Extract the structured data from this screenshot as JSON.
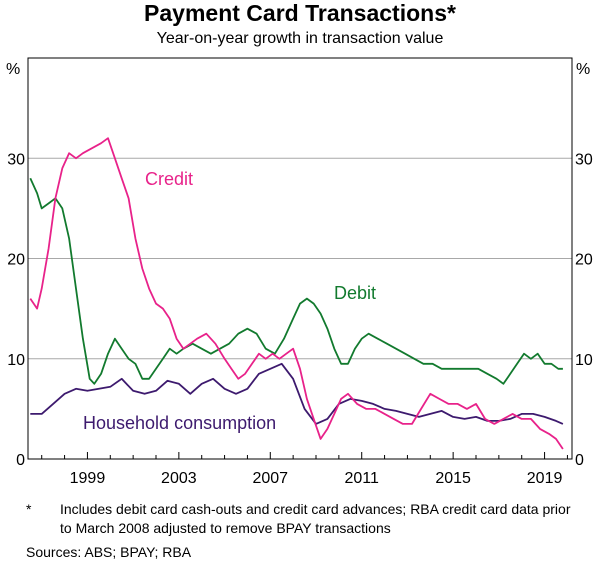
{
  "title": "Payment Card Transactions*",
  "subtitle": "Year-on-year growth in transaction value",
  "footnote": {
    "marker": "*",
    "text": "Includes debit card cash-outs and credit card advances; RBA credit card data prior to March 2008 adjusted to remove BPAY transactions"
  },
  "sources": "Sources: ABS; BPAY; RBA",
  "colors": {
    "credit": "#e8228a",
    "debit": "#127a2e",
    "household": "#3d1a6e",
    "grid": "#a8a8a8"
  },
  "chart_data": {
    "type": "line",
    "yunit": "%",
    "ylim": [
      0,
      40
    ],
    "yticks": [
      0,
      10,
      20,
      30
    ],
    "xlim": [
      1996.4,
      2020.2
    ],
    "xticks": [
      1999,
      2003,
      2007,
      2011,
      2015,
      2019
    ],
    "grid": true,
    "series": [
      {
        "name": "Credit",
        "key": "credit",
        "points": [
          [
            1996.5,
            16
          ],
          [
            1996.8,
            15
          ],
          [
            1997.0,
            17
          ],
          [
            1997.3,
            21
          ],
          [
            1997.6,
            26
          ],
          [
            1997.9,
            29
          ],
          [
            1998.2,
            30.5
          ],
          [
            1998.5,
            30
          ],
          [
            1998.8,
            30.5
          ],
          [
            1999.2,
            31
          ],
          [
            1999.6,
            31.5
          ],
          [
            1999.9,
            32
          ],
          [
            2000.2,
            30
          ],
          [
            2000.5,
            28
          ],
          [
            2000.8,
            26
          ],
          [
            2001.1,
            22
          ],
          [
            2001.4,
            19
          ],
          [
            2001.7,
            17
          ],
          [
            2002.0,
            15.5
          ],
          [
            2002.3,
            15
          ],
          [
            2002.6,
            14
          ],
          [
            2002.9,
            12
          ],
          [
            2003.2,
            11
          ],
          [
            2003.5,
            11.5
          ],
          [
            2003.8,
            12
          ],
          [
            2004.2,
            12.5
          ],
          [
            2004.6,
            11.5
          ],
          [
            2005.0,
            10
          ],
          [
            2005.3,
            9
          ],
          [
            2005.6,
            8
          ],
          [
            2005.9,
            8.5
          ],
          [
            2006.2,
            9.5
          ],
          [
            2006.5,
            10.5
          ],
          [
            2006.8,
            10
          ],
          [
            2007.1,
            10.5
          ],
          [
            2007.4,
            10
          ],
          [
            2007.7,
            10.5
          ],
          [
            2008.0,
            11
          ],
          [
            2008.3,
            9
          ],
          [
            2008.6,
            6
          ],
          [
            2008.9,
            4
          ],
          [
            2009.2,
            2
          ],
          [
            2009.5,
            3
          ],
          [
            2009.8,
            4.5
          ],
          [
            2010.1,
            6
          ],
          [
            2010.4,
            6.5
          ],
          [
            2010.8,
            5.5
          ],
          [
            2011.2,
            5
          ],
          [
            2011.6,
            5
          ],
          [
            2012.0,
            4.5
          ],
          [
            2012.4,
            4
          ],
          [
            2012.8,
            3.5
          ],
          [
            2013.2,
            3.5
          ],
          [
            2013.6,
            5
          ],
          [
            2014.0,
            6.5
          ],
          [
            2014.4,
            6
          ],
          [
            2014.8,
            5.5
          ],
          [
            2015.2,
            5.5
          ],
          [
            2015.6,
            5
          ],
          [
            2016.0,
            5.5
          ],
          [
            2016.4,
            4
          ],
          [
            2016.8,
            3.5
          ],
          [
            2017.2,
            4
          ],
          [
            2017.6,
            4.5
          ],
          [
            2018.0,
            4
          ],
          [
            2018.4,
            4
          ],
          [
            2018.8,
            3
          ],
          [
            2019.2,
            2.5
          ],
          [
            2019.5,
            2
          ],
          [
            2019.8,
            1
          ]
        ]
      },
      {
        "name": "Debit",
        "key": "debit",
        "points": [
          [
            1996.5,
            28
          ],
          [
            1996.8,
            26.5
          ],
          [
            1997.0,
            25
          ],
          [
            1997.3,
            25.5
          ],
          [
            1997.6,
            26
          ],
          [
            1997.9,
            25
          ],
          [
            1998.2,
            22
          ],
          [
            1998.5,
            17
          ],
          [
            1998.8,
            12
          ],
          [
            1999.1,
            8
          ],
          [
            1999.3,
            7.5
          ],
          [
            1999.6,
            8.5
          ],
          [
            1999.9,
            10.5
          ],
          [
            2000.2,
            12
          ],
          [
            2000.5,
            11
          ],
          [
            2000.8,
            10
          ],
          [
            2001.1,
            9.5
          ],
          [
            2001.4,
            8
          ],
          [
            2001.7,
            8
          ],
          [
            2002.0,
            9
          ],
          [
            2002.3,
            10
          ],
          [
            2002.6,
            11
          ],
          [
            2002.9,
            10.5
          ],
          [
            2003.2,
            11
          ],
          [
            2003.6,
            11.5
          ],
          [
            2004.0,
            11
          ],
          [
            2004.4,
            10.5
          ],
          [
            2004.8,
            11
          ],
          [
            2005.2,
            11.5
          ],
          [
            2005.6,
            12.5
          ],
          [
            2006.0,
            13
          ],
          [
            2006.4,
            12.5
          ],
          [
            2006.8,
            11
          ],
          [
            2007.2,
            10.5
          ],
          [
            2007.6,
            12
          ],
          [
            2008.0,
            14
          ],
          [
            2008.3,
            15.5
          ],
          [
            2008.6,
            16
          ],
          [
            2008.9,
            15.5
          ],
          [
            2009.2,
            14.5
          ],
          [
            2009.5,
            13
          ],
          [
            2009.8,
            11
          ],
          [
            2010.1,
            9.5
          ],
          [
            2010.4,
            9.5
          ],
          [
            2010.7,
            11
          ],
          [
            2011.0,
            12
          ],
          [
            2011.3,
            12.5
          ],
          [
            2011.7,
            12
          ],
          [
            2012.1,
            11.5
          ],
          [
            2012.5,
            11
          ],
          [
            2012.9,
            10.5
          ],
          [
            2013.3,
            10
          ],
          [
            2013.7,
            9.5
          ],
          [
            2014.1,
            9.5
          ],
          [
            2014.5,
            9
          ],
          [
            2014.9,
            9
          ],
          [
            2015.3,
            9
          ],
          [
            2015.7,
            9
          ],
          [
            2016.1,
            9
          ],
          [
            2016.5,
            8.5
          ],
          [
            2016.9,
            8
          ],
          [
            2017.2,
            7.5
          ],
          [
            2017.5,
            8.5
          ],
          [
            2017.8,
            9.5
          ],
          [
            2018.1,
            10.5
          ],
          [
            2018.4,
            10
          ],
          [
            2018.7,
            10.5
          ],
          [
            2019.0,
            9.5
          ],
          [
            2019.3,
            9.5
          ],
          [
            2019.6,
            9
          ],
          [
            2019.8,
            9
          ]
        ]
      },
      {
        "name": "Household consumption",
        "key": "household",
        "points": [
          [
            1996.5,
            4.5
          ],
          [
            1997.0,
            4.5
          ],
          [
            1997.5,
            5.5
          ],
          [
            1998.0,
            6.5
          ],
          [
            1998.5,
            7
          ],
          [
            1999.0,
            6.8
          ],
          [
            1999.5,
            7
          ],
          [
            2000.0,
            7.2
          ],
          [
            2000.5,
            8
          ],
          [
            2001.0,
            6.8
          ],
          [
            2001.5,
            6.5
          ],
          [
            2002.0,
            6.8
          ],
          [
            2002.5,
            7.8
          ],
          [
            2003.0,
            7.5
          ],
          [
            2003.5,
            6.5
          ],
          [
            2004.0,
            7.5
          ],
          [
            2004.5,
            8
          ],
          [
            2005.0,
            7
          ],
          [
            2005.5,
            6.5
          ],
          [
            2006.0,
            7
          ],
          [
            2006.5,
            8.5
          ],
          [
            2007.0,
            9
          ],
          [
            2007.5,
            9.5
          ],
          [
            2008.0,
            8
          ],
          [
            2008.5,
            5
          ],
          [
            2009.0,
            3.5
          ],
          [
            2009.5,
            4
          ],
          [
            2010.0,
            5.5
          ],
          [
            2010.5,
            6
          ],
          [
            2011.0,
            5.8
          ],
          [
            2011.5,
            5.5
          ],
          [
            2012.0,
            5
          ],
          [
            2012.5,
            4.8
          ],
          [
            2013.0,
            4.5
          ],
          [
            2013.5,
            4.2
          ],
          [
            2014.0,
            4.5
          ],
          [
            2014.5,
            4.8
          ],
          [
            2015.0,
            4.2
          ],
          [
            2015.5,
            4
          ],
          [
            2016.0,
            4.2
          ],
          [
            2016.5,
            3.8
          ],
          [
            2017.0,
            3.8
          ],
          [
            2017.5,
            4
          ],
          [
            2018.0,
            4.5
          ],
          [
            2018.5,
            4.5
          ],
          [
            2019.0,
            4.2
          ],
          [
            2019.5,
            3.8
          ],
          [
            2019.8,
            3.5
          ]
        ]
      }
    ]
  }
}
